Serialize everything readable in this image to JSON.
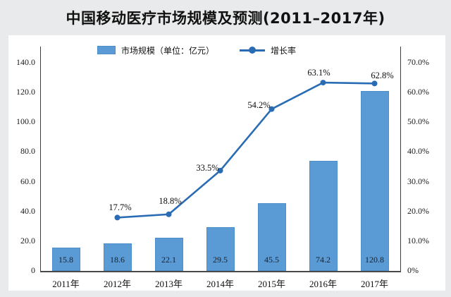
{
  "title": "中国移动医疗市场规模及预测(2011–2017年)",
  "legend": {
    "items": [
      {
        "label": "市场规模（单位：亿元）",
        "marker": "bar-swatch"
      },
      {
        "label": "增长率",
        "marker": "line-dot"
      }
    ]
  },
  "colors": {
    "bar": "#5B9BD5",
    "line": "#2A6CB4",
    "axis": "#3d3d3d",
    "page_background": "#e9eaeb",
    "panel_background": "#ffffff"
  },
  "chart_data": {
    "type": "bar+line",
    "title": "中国移动医疗市场规模及预测(2011–2017年)",
    "categories": [
      "2011年",
      "2012年",
      "2013年",
      "2014年",
      "2015年",
      "2016年",
      "2017年"
    ],
    "series": [
      {
        "name": "市场规模（单位：亿元）",
        "type": "bar",
        "axis": "left",
        "color": "#5B9BD5",
        "values": [
          15.8,
          18.6,
          22.1,
          29.5,
          45.5,
          74.2,
          120.8
        ],
        "value_labels": [
          "15.8",
          "18.6",
          "22.1",
          "29.5",
          "45.5",
          "74.2",
          "120.8"
        ]
      },
      {
        "name": "增长率",
        "type": "line",
        "axis": "right",
        "unit": "%",
        "color": "#2A6CB4",
        "values": [
          null,
          17.7,
          18.8,
          33.5,
          54.2,
          63.1,
          62.8
        ],
        "value_labels": [
          null,
          "17.7%",
          "18.8%",
          "33.5%",
          "54.2%",
          "63.1%",
          "62.8%"
        ]
      }
    ],
    "left_axis": {
      "min": 0,
      "max": 140,
      "tick_labels": [
        "0",
        "20.0",
        "40.0",
        "60.0",
        "80.0",
        "100.0",
        "120.0",
        "140.0"
      ]
    },
    "right_axis": {
      "min": 0,
      "max": 70,
      "tick_labels": [
        "0%",
        "10.0%",
        "20.0%",
        "30.0%",
        "40.0%",
        "50.0%",
        "60.0%",
        "70.0%"
      ]
    },
    "grid": false,
    "legend_position": "top"
  }
}
